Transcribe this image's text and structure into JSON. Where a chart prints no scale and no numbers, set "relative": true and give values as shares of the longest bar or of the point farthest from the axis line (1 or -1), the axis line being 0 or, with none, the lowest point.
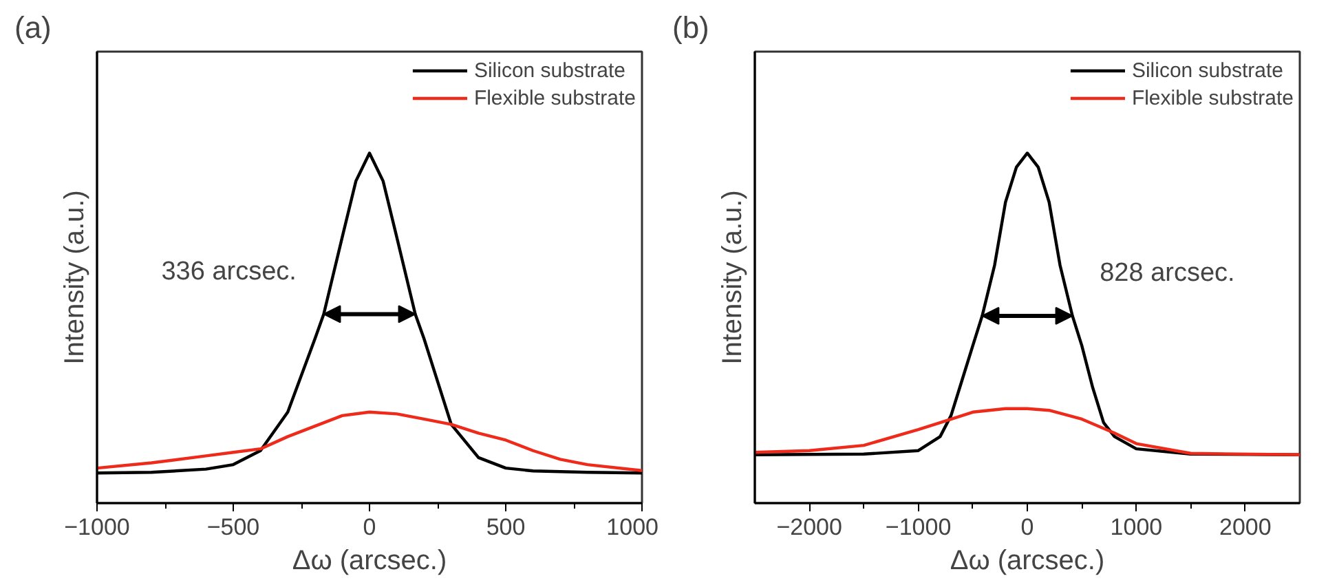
{
  "chart_data": [
    {
      "type": "line",
      "title": "(a)",
      "xlabel": "Δω (arcsec.)",
      "ylabel": "Intensity (a.u.)",
      "relative": true,
      "xlim": [
        -1000,
        1000
      ],
      "xticks": [
        -1000,
        -500,
        0,
        500,
        1000
      ],
      "tick_labels": "x",
      "legend": "top right",
      "annotations": [
        {
          "text": "336 arcsec.",
          "x": -168,
          "y": 0.54
        }
      ],
      "series": [
        {
          "name": "Silicon substrate",
          "color": "#000000",
          "x": [
            -1000,
            -800,
            -600,
            -500,
            -400,
            -300,
            -200,
            -168,
            -100,
            -50,
            0,
            50,
            100,
            168,
            200,
            300,
            400,
            500,
            600,
            800,
            1000
          ],
          "values": [
            0.086,
            0.088,
            0.097,
            0.11,
            0.15,
            0.26,
            0.47,
            0.54,
            0.76,
            0.92,
            1.0,
            0.92,
            0.76,
            0.54,
            0.47,
            0.225,
            0.13,
            0.1,
            0.092,
            0.088,
            0.086
          ]
        },
        {
          "name": "Flexible substrate",
          "color": "#ee2a1a",
          "x": [
            -1000,
            -800,
            -600,
            -500,
            -400,
            -300,
            -200,
            -100,
            0,
            100,
            200,
            300,
            400,
            500,
            600,
            700,
            800,
            1000
          ],
          "values": [
            0.1,
            0.115,
            0.135,
            0.145,
            0.155,
            0.19,
            0.22,
            0.25,
            0.26,
            0.255,
            0.24,
            0.225,
            0.2,
            0.18,
            0.15,
            0.125,
            0.11,
            0.093
          ]
        }
      ]
    },
    {
      "type": "line",
      "title": "(b)",
      "xlabel": "Δω (arcsec.)",
      "ylabel": "Intensity (a.u.)",
      "relative": true,
      "xlim": [
        -2500,
        2500
      ],
      "xticks": [
        -2000,
        -1000,
        0,
        1000,
        2000
      ],
      "tick_labels": "x",
      "legend": "top right",
      "annotations": [
        {
          "text": "828 arcsec.",
          "x": 414,
          "y": 0.535
        }
      ],
      "series": [
        {
          "name": "Silicon substrate",
          "color": "#000000",
          "x": [
            -2500,
            -1500,
            -1000,
            -800,
            -700,
            -600,
            -500,
            -414,
            -300,
            -200,
            -100,
            0,
            100,
            200,
            300,
            414,
            500,
            600,
            700,
            800,
            1000,
            1500,
            2500
          ],
          "values": [
            0.138,
            0.14,
            0.15,
            0.19,
            0.25,
            0.35,
            0.45,
            0.535,
            0.68,
            0.86,
            0.96,
            1.0,
            0.96,
            0.86,
            0.68,
            0.535,
            0.45,
            0.33,
            0.23,
            0.19,
            0.155,
            0.14,
            0.138
          ]
        },
        {
          "name": "Flexible substrate",
          "color": "#ee2a1a",
          "x": [
            -2500,
            -2000,
            -1500,
            -1000,
            -800,
            -500,
            -200,
            0,
            200,
            500,
            800,
            1000,
            1500,
            2500
          ],
          "values": [
            0.145,
            0.15,
            0.165,
            0.21,
            0.23,
            0.26,
            0.27,
            0.27,
            0.265,
            0.24,
            0.2,
            0.17,
            0.142,
            0.138
          ]
        }
      ]
    }
  ]
}
